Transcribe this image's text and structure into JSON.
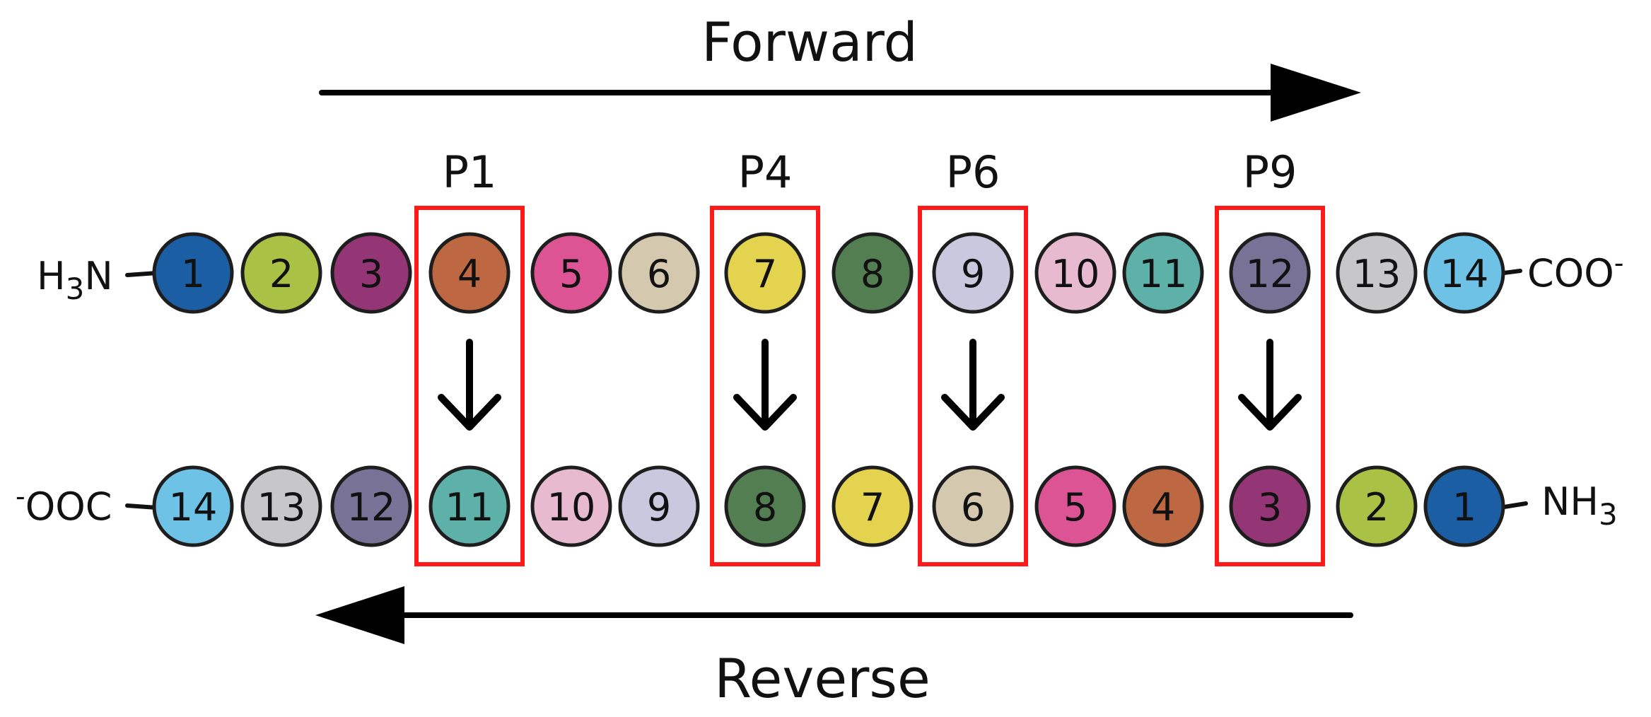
{
  "direction_labels": {
    "forward": "Forward",
    "reverse": "Reverse"
  },
  "termini": {
    "forward_n": "N",
    "forward_n_prefix": "H",
    "forward_n_sub": "3",
    "forward_c": "COO",
    "forward_c_charge": "-",
    "reverse_c_charge": "-",
    "reverse_c": "OOC",
    "reverse_n": "NH",
    "reverse_n_sub": "3"
  },
  "pockets": [
    "P1",
    "P4",
    "P6",
    "P9"
  ],
  "residue_colors": {
    "1": "#1b5ea3",
    "2": "#a9c246",
    "3": "#943676",
    "4": "#bd6842",
    "5": "#dd5495",
    "6": "#d4c9ae",
    "7": "#e4d34e",
    "8": "#527e51",
    "9": "#c9c8de",
    "10": "#e7bad0",
    "11": "#5db1a8",
    "12": "#787297",
    "13": "#c7c7c9",
    "14": "#6dc2e6"
  },
  "forward_sequence": [
    "1",
    "2",
    "3",
    "4",
    "5",
    "6",
    "7",
    "8",
    "9",
    "10",
    "11",
    "12",
    "13",
    "14"
  ],
  "reverse_sequence": [
    "14",
    "13",
    "12",
    "11",
    "10",
    "9",
    "8",
    "7",
    "6",
    "5",
    "4",
    "3",
    "2",
    "1"
  ],
  "pocket_alignment": [
    {
      "pocket": "P1",
      "forward": "4",
      "reverse": "11"
    },
    {
      "pocket": "P4",
      "forward": "7",
      "reverse": "8"
    },
    {
      "pocket": "P6",
      "forward": "9",
      "reverse": "6"
    },
    {
      "pocket": "P9",
      "forward": "12",
      "reverse": "3"
    }
  ]
}
